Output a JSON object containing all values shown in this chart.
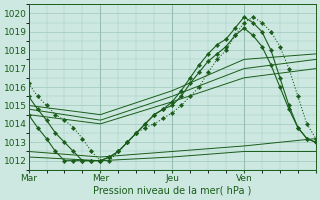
{
  "xlabel": "Pression niveau de la mer( hPa )",
  "bg_color": "#cce8e0",
  "grid_color": "#a0c8c0",
  "line_color": "#1a5c1a",
  "xlim": [
    0,
    96
  ],
  "ylim": [
    1011.5,
    1020.5
  ],
  "yticks": [
    1012,
    1013,
    1014,
    1015,
    1016,
    1017,
    1018,
    1019,
    1020
  ],
  "xtick_positions": [
    0,
    24,
    48,
    72,
    96
  ],
  "xtick_labels": [
    "Mar",
    "Mer",
    "Jeu",
    "Ven",
    ""
  ],
  "series": [
    {
      "x": [
        0,
        3,
        6,
        9,
        12,
        15,
        18,
        21,
        24,
        27,
        30,
        33,
        36,
        39,
        42,
        45,
        48,
        51,
        54,
        57,
        60,
        63,
        66,
        69,
        72,
        75,
        78,
        81,
        84,
        87,
        90,
        93,
        96
      ],
      "y": [
        1016.2,
        1015.5,
        1015.0,
        1014.5,
        1014.2,
        1013.8,
        1013.2,
        1012.5,
        1012.0,
        1012.0,
        1012.5,
        1013.0,
        1013.5,
        1013.8,
        1014.0,
        1014.3,
        1014.6,
        1015.0,
        1015.5,
        1016.0,
        1016.8,
        1017.5,
        1018.0,
        1018.8,
        1019.5,
        1019.8,
        1019.5,
        1019.0,
        1018.2,
        1017.0,
        1015.5,
        1014.0,
        1013.2
      ],
      "style": "dotted",
      "marker": "D",
      "markersize": 2.2,
      "lw": 0.8
    },
    {
      "x": [
        0,
        3,
        6,
        9,
        12,
        15,
        18,
        21,
        24,
        27,
        30,
        33,
        36,
        39,
        42,
        45,
        48,
        51,
        54,
        57,
        60,
        63,
        66,
        69,
        72,
        75,
        78,
        81,
        84,
        87,
        90,
        93,
        96
      ],
      "y": [
        1015.5,
        1014.8,
        1014.2,
        1013.5,
        1013.0,
        1012.5,
        1012.0,
        1012.0,
        1012.0,
        1012.2,
        1012.5,
        1013.0,
        1013.5,
        1014.0,
        1014.5,
        1014.8,
        1015.2,
        1015.8,
        1016.5,
        1017.2,
        1017.8,
        1018.3,
        1018.6,
        1019.2,
        1019.8,
        1019.5,
        1019.0,
        1018.0,
        1016.5,
        1015.0,
        1013.8,
        1013.2,
        1013.0
      ],
      "style": "solid",
      "marker": "D",
      "markersize": 2.2,
      "lw": 0.8
    },
    {
      "x": [
        0,
        3,
        6,
        9,
        12,
        15,
        18,
        21,
        24,
        27,
        30,
        33,
        36,
        39,
        42,
        45,
        48,
        51,
        54,
        57,
        60,
        63,
        66,
        69,
        72,
        75,
        78,
        81,
        84,
        87,
        90,
        93,
        96
      ],
      "y": [
        1014.5,
        1013.8,
        1013.2,
        1012.5,
        1012.0,
        1012.0,
        1012.0,
        1012.0,
        1012.0,
        1012.2,
        1012.5,
        1013.0,
        1013.5,
        1014.0,
        1014.5,
        1014.8,
        1015.0,
        1015.5,
        1016.2,
        1016.8,
        1017.4,
        1017.8,
        1018.2,
        1018.8,
        1019.2,
        1018.8,
        1018.2,
        1017.2,
        1016.0,
        1014.8,
        1013.8,
        1013.2,
        1013.0
      ],
      "style": "solid",
      "marker": "D",
      "markersize": 2.2,
      "lw": 0.8
    },
    {
      "x": [
        0,
        24,
        48,
        72,
        96
      ],
      "y": [
        1015.0,
        1014.5,
        1015.8,
        1017.5,
        1017.8
      ],
      "style": "solid",
      "marker": null,
      "markersize": 0,
      "lw": 0.7
    },
    {
      "x": [
        0,
        24,
        48,
        72,
        96
      ],
      "y": [
        1014.8,
        1014.2,
        1015.5,
        1017.0,
        1017.5
      ],
      "style": "solid",
      "marker": null,
      "markersize": 0,
      "lw": 0.7
    },
    {
      "x": [
        0,
        24,
        48,
        72,
        96
      ],
      "y": [
        1014.5,
        1014.0,
        1015.2,
        1016.5,
        1017.0
      ],
      "style": "solid",
      "marker": null,
      "markersize": 0,
      "lw": 0.7
    },
    {
      "x": [
        0,
        24,
        48,
        72,
        96
      ],
      "y": [
        1012.5,
        1012.2,
        1012.5,
        1012.8,
        1013.2
      ],
      "style": "solid",
      "marker": null,
      "markersize": 0,
      "lw": 0.7
    },
    {
      "x": [
        0,
        24,
        48,
        72,
        96
      ],
      "y": [
        1012.2,
        1012.0,
        1012.2,
        1012.5,
        1012.5
      ],
      "style": "solid",
      "marker": null,
      "markersize": 0,
      "lw": 0.7
    }
  ],
  "vlines": [
    0,
    24,
    48,
    72,
    96
  ]
}
